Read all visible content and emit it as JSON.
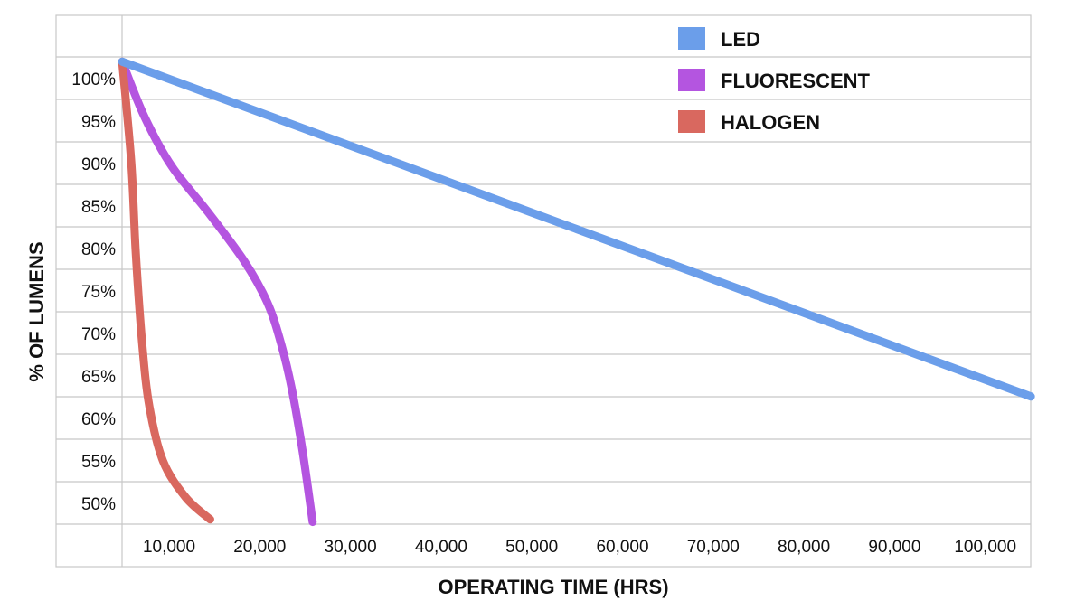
{
  "chart_data": {
    "type": "line",
    "title": "",
    "xlabel": "OPERATING TIME (HRS)",
    "ylabel": "% OF LUMENS",
    "x_tick_labels": [
      "10,000",
      "20,000",
      "30,000",
      "40,000",
      "50,000",
      "60,000",
      "70,000",
      "80,000",
      "90,000",
      "100,000"
    ],
    "y_tick_labels": [
      "100%",
      "95%",
      "90%",
      "85%",
      "80%",
      "75%",
      "70%",
      "65%",
      "60%",
      "55%",
      "50%"
    ],
    "grid": "horizontal",
    "legend_position": "top-right",
    "series": [
      {
        "name": "LED",
        "color": "#6b9eea",
        "x": [
          4800,
          105000
        ],
        "y": [
          102,
          62.5
        ]
      },
      {
        "name": "FLUORESCENT",
        "color": "#b455e0",
        "x": [
          4800,
          7300,
          10300,
          14300,
          18300,
          20800,
          22300,
          23500,
          24700,
          25800
        ],
        "y": [
          102,
          95.4,
          89.6,
          84.2,
          78.4,
          73.6,
          68.8,
          63.4,
          56.0,
          47.7
        ]
      },
      {
        "name": "HALOGEN",
        "color": "#d9685f",
        "x": [
          4800,
          5800,
          6300,
          7000,
          7800,
          9300,
          11800,
          14500
        ],
        "y": [
          102,
          90.1,
          79.4,
          68.8,
          61.3,
          54.9,
          50.6,
          48.0
        ]
      }
    ]
  }
}
